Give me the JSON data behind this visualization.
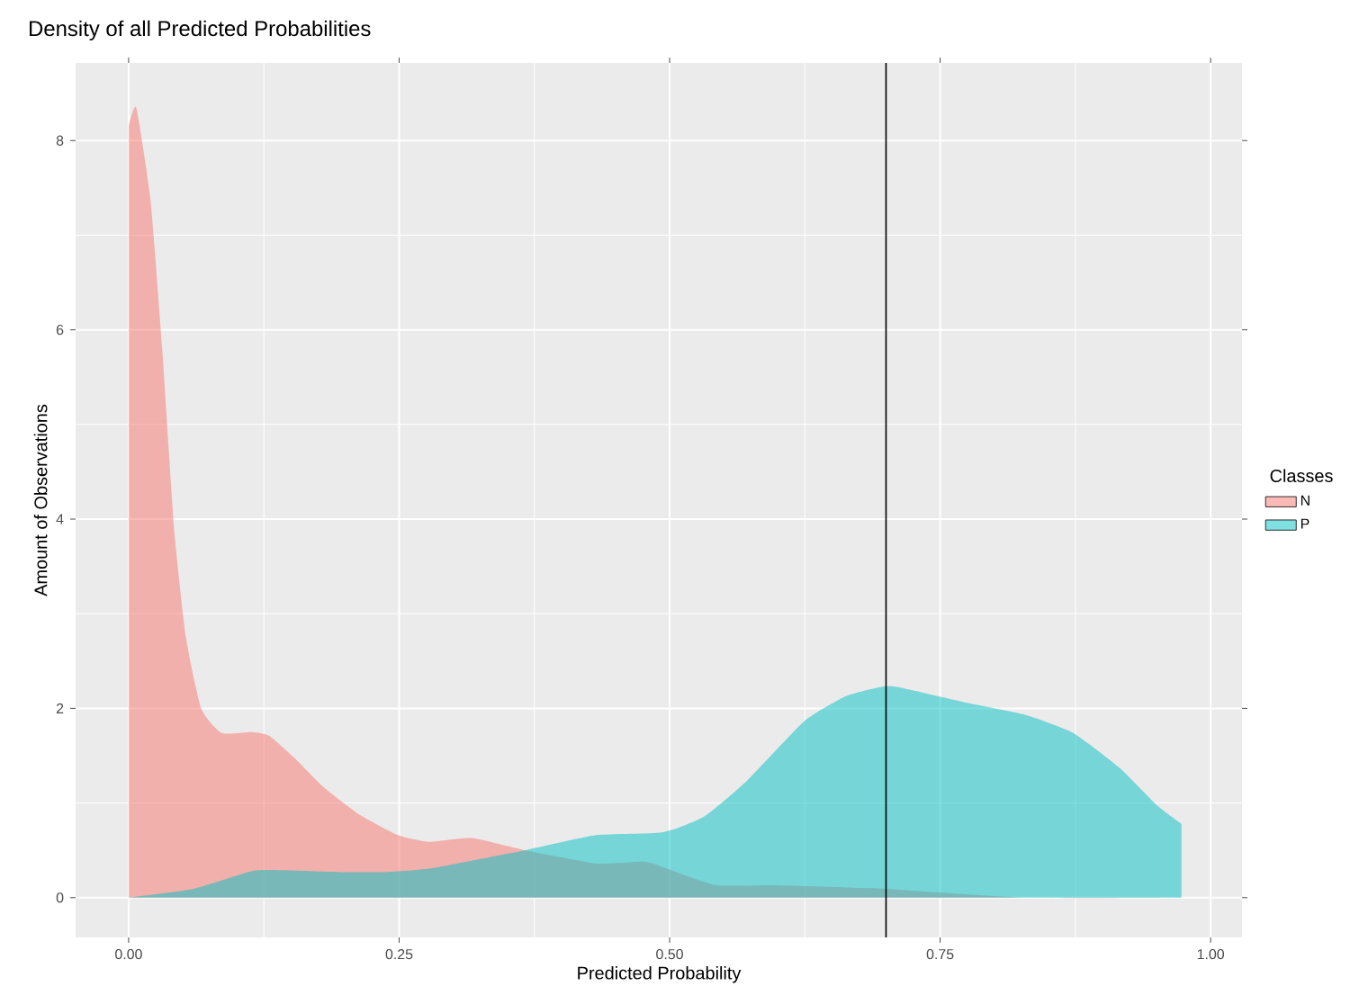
{
  "chart_data": {
    "type": "area",
    "title": "Density of all Predicted Probabilities",
    "xlabel": "Predicted Probability",
    "ylabel": "Amount of Observations",
    "legend_title": "Classes",
    "legend": "right",
    "grid": true,
    "xlim": [
      -0.049,
      1.029
    ],
    "ylim": [
      -0.42,
      8.82
    ],
    "xticks": [
      {
        "value": 0,
        "label": "0.00"
      },
      {
        "value": 0.25,
        "label": "0.25"
      },
      {
        "value": 0.5,
        "label": "0.50"
      },
      {
        "value": 0.75,
        "label": "0.75"
      },
      {
        "value": 1,
        "label": "1.00"
      }
    ],
    "yticks": [
      0,
      2,
      4,
      6,
      8
    ],
    "ref_lines": [
      {
        "axis": "x",
        "value": 0.7,
        "color": "#000000"
      }
    ],
    "series": [
      {
        "name": "N",
        "color": "#F8766D",
        "x": [
          0,
          0.007,
          0.02,
          0.031,
          0.042,
          0.053,
          0.067,
          0.086,
          0.114,
          0.13,
          0.152,
          0.18,
          0.213,
          0.249,
          0.277,
          0.317,
          0.367,
          0.433,
          0.477,
          0.499,
          0.543,
          0.598,
          0.68,
          0.69,
          0.83,
          0.973
        ],
        "values": [
          8.15,
          8.35,
          7.4,
          5.8,
          3.9,
          2.75,
          2.0,
          1.74,
          1.75,
          1.71,
          1.49,
          1.17,
          0.88,
          0.66,
          0.59,
          0.63,
          0.5,
          0.36,
          0.38,
          0.3,
          0.13,
          0.13,
          0.1,
          0.1,
          0.0,
          0.0
        ]
      },
      {
        "name": "P",
        "color": "#00BFC4",
        "x": [
          0,
          0.059,
          0.114,
          0.141,
          0.196,
          0.235,
          0.279,
          0.366,
          0.432,
          0.493,
          0.531,
          0.571,
          0.625,
          0.663,
          0.697,
          0.713,
          0.774,
          0.829,
          0.873,
          0.917,
          0.95,
          0.973
        ],
        "values": [
          0.0,
          0.09,
          0.28,
          0.29,
          0.27,
          0.27,
          0.31,
          0.5,
          0.66,
          0.69,
          0.85,
          1.23,
          1.87,
          2.13,
          2.23,
          2.22,
          2.06,
          1.93,
          1.74,
          1.36,
          0.98,
          0.78
        ]
      }
    ]
  }
}
